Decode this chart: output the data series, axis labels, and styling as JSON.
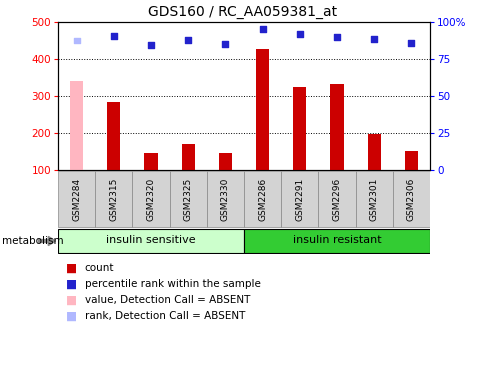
{
  "title": "GDS160 / RC_AA059381_at",
  "samples": [
    "GSM2284",
    "GSM2315",
    "GSM2320",
    "GSM2325",
    "GSM2330",
    "GSM2286",
    "GSM2291",
    "GSM2296",
    "GSM2301",
    "GSM2306"
  ],
  "bar_values": [
    340,
    285,
    145,
    170,
    145,
    428,
    323,
    332,
    198,
    152
  ],
  "bar_colors": [
    "#ffb6c1",
    "#cc0000",
    "#cc0000",
    "#cc0000",
    "#cc0000",
    "#cc0000",
    "#cc0000",
    "#cc0000",
    "#cc0000",
    "#cc0000"
  ],
  "scatter_values": [
    450,
    462,
    438,
    452,
    440,
    482,
    468,
    460,
    454,
    443
  ],
  "scatter_colors": [
    "#b0b8ff",
    "#2222cc",
    "#2222cc",
    "#2222cc",
    "#2222cc",
    "#2222cc",
    "#2222cc",
    "#2222cc",
    "#2222cc",
    "#2222cc"
  ],
  "ylim_left": [
    100,
    500
  ],
  "ylim_right": [
    0,
    100
  ],
  "yticks_left": [
    100,
    200,
    300,
    400,
    500
  ],
  "yticks_right": [
    0,
    25,
    50,
    75,
    100
  ],
  "yticklabels_right": [
    "0",
    "25",
    "50",
    "75",
    "100%"
  ],
  "group1_label": "insulin sensitive",
  "group2_label": "insulin resistant",
  "group1_count": 5,
  "group2_count": 5,
  "group1_color": "#ccffcc",
  "group2_color": "#33cc33",
  "metabolism_label": "metabolism",
  "legend_items": [
    {
      "label": "count",
      "color": "#cc0000"
    },
    {
      "label": "percentile rank within the sample",
      "color": "#2222cc"
    },
    {
      "label": "value, Detection Call = ABSENT",
      "color": "#ffb6c1"
    },
    {
      "label": "rank, Detection Call = ABSENT",
      "color": "#b0b8ff"
    }
  ],
  "bar_baseline": 100,
  "xlabel_box_color": "#d3d3d3",
  "xlabel_box_border": "#888888"
}
